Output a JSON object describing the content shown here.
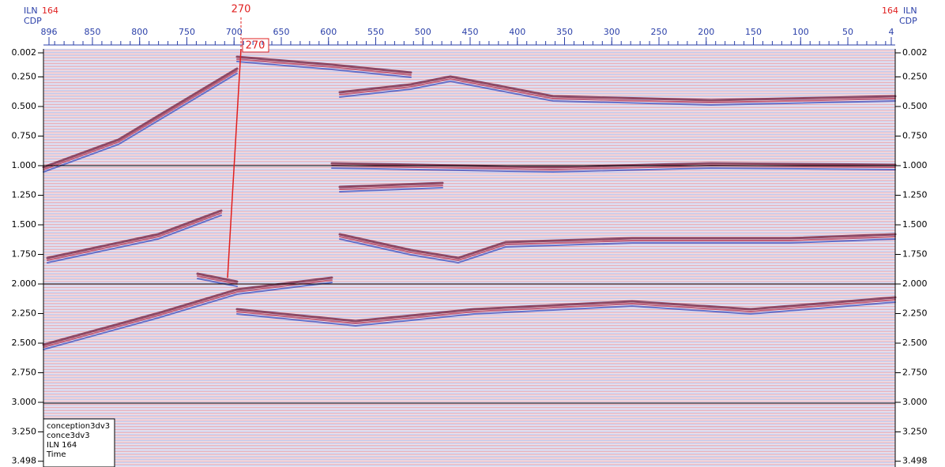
{
  "header": {
    "left_iln_label": "ILN",
    "left_iln": "164",
    "left_cdp_label": "CDP",
    "right_iln": "164",
    "right_iln_label": "ILN",
    "right_cdp_label": "CDP"
  },
  "cdp_ticks": [
    "896",
    "850",
    "800",
    "750",
    "700",
    "650",
    "600",
    "550",
    "500",
    "450",
    "400",
    "350",
    "300",
    "250",
    "200",
    "150",
    "100",
    "50",
    "4"
  ],
  "marker": {
    "label": "270",
    "box": "270"
  },
  "time_ticks": [
    "0.002",
    "0.250",
    "0.500",
    "0.750",
    "1.000",
    "1.250",
    "1.500",
    "1.750",
    "2.000",
    "2.250",
    "2.500",
    "2.750",
    "3.000",
    "3.250",
    "3.498"
  ],
  "info": [
    "conception3dv3",
    "conce3dv3",
    "ILN 164",
    "Time"
  ]
}
